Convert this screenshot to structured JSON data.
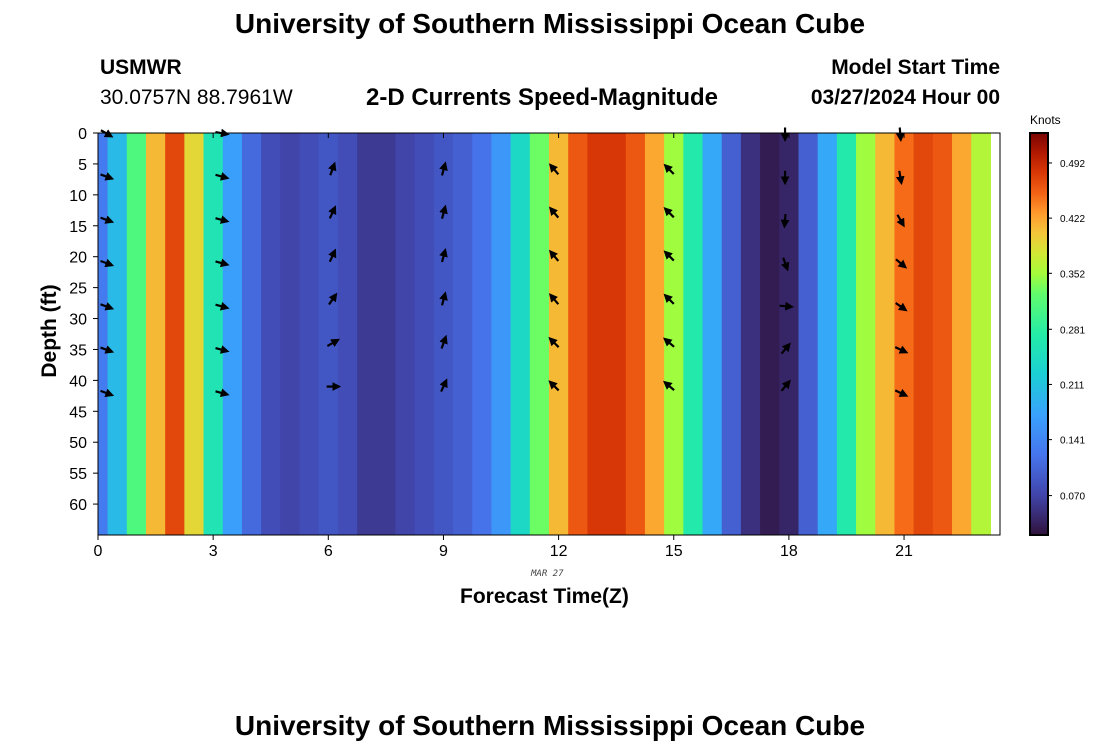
{
  "page": {
    "title_top": "University of Southern Mississippi Ocean Cube",
    "title_bottom": "University of Southern Mississippi Ocean Cube",
    "station_id": "USMWR",
    "station_coords": "30.0757N  88.7961W",
    "plot_title": "2-D Currents Speed-Magnitude",
    "model_label": "Model Start Time",
    "model_time": "03/27/2024 Hour 00",
    "date_note": "MAR 27"
  },
  "chart_data": {
    "type": "heatmap",
    "title": "2-D Currents Speed-Magnitude",
    "xlabel": "Forecast Time(Z)",
    "ylabel": "Depth (ft)",
    "colorbar_label": "Knots",
    "xlim": [
      0,
      23.5
    ],
    "ylim": [
      0,
      65
    ],
    "x_ticks": [
      0,
      3,
      6,
      9,
      12,
      15,
      18,
      21
    ],
    "y_ticks": [
      0,
      5,
      10,
      15,
      20,
      25,
      30,
      35,
      40,
      45,
      50,
      55,
      60
    ],
    "colorbar_ticks": [
      "0.070",
      "0.141",
      "0.211",
      "0.281",
      "0.352",
      "0.422",
      "0.492"
    ],
    "colorbar_range": [
      0.02,
      0.53
    ],
    "column_width_hours": 0.5,
    "speed_profile": [
      {
        "t": 0.0,
        "speed": 0.13
      },
      {
        "t": 0.5,
        "speed": 0.2
      },
      {
        "t": 1.0,
        "speed": 0.31
      },
      {
        "t": 1.5,
        "speed": 0.41
      },
      {
        "t": 2.0,
        "speed": 0.47
      },
      {
        "t": 2.5,
        "speed": 0.39
      },
      {
        "t": 3.0,
        "speed": 0.26
      },
      {
        "t": 3.5,
        "speed": 0.17
      },
      {
        "t": 4.0,
        "speed": 0.11
      },
      {
        "t": 4.5,
        "speed": 0.08
      },
      {
        "t": 5.0,
        "speed": 0.07
      },
      {
        "t": 5.5,
        "speed": 0.08
      },
      {
        "t": 6.0,
        "speed": 0.09
      },
      {
        "t": 6.5,
        "speed": 0.08
      },
      {
        "t": 7.0,
        "speed": 0.06
      },
      {
        "t": 7.5,
        "speed": 0.06
      },
      {
        "t": 8.0,
        "speed": 0.07
      },
      {
        "t": 8.5,
        "speed": 0.08
      },
      {
        "t": 9.0,
        "speed": 0.09
      },
      {
        "t": 9.5,
        "speed": 0.1
      },
      {
        "t": 10.0,
        "speed": 0.12
      },
      {
        "t": 10.5,
        "speed": 0.16
      },
      {
        "t": 11.0,
        "speed": 0.24
      },
      {
        "t": 11.5,
        "speed": 0.33
      },
      {
        "t": 12.0,
        "speed": 0.41
      },
      {
        "t": 12.5,
        "speed": 0.46
      },
      {
        "t": 13.0,
        "speed": 0.48
      },
      {
        "t": 13.5,
        "speed": 0.48
      },
      {
        "t": 14.0,
        "speed": 0.46
      },
      {
        "t": 14.5,
        "speed": 0.42
      },
      {
        "t": 15.0,
        "speed": 0.35
      },
      {
        "t": 15.5,
        "speed": 0.27
      },
      {
        "t": 16.0,
        "speed": 0.18
      },
      {
        "t": 16.5,
        "speed": 0.1
      },
      {
        "t": 17.0,
        "speed": 0.05
      },
      {
        "t": 17.5,
        "speed": 0.03
      },
      {
        "t": 18.0,
        "speed": 0.04
      },
      {
        "t": 18.5,
        "speed": 0.1
      },
      {
        "t": 19.0,
        "speed": 0.18
      },
      {
        "t": 19.5,
        "speed": 0.27
      },
      {
        "t": 20.0,
        "speed": 0.35
      },
      {
        "t": 20.5,
        "speed": 0.41
      },
      {
        "t": 21.0,
        "speed": 0.45
      },
      {
        "t": 21.5,
        "speed": 0.47
      },
      {
        "t": 22.0,
        "speed": 0.46
      },
      {
        "t": 22.5,
        "speed": 0.42
      },
      {
        "t": 23.0,
        "speed": 0.36
      }
    ],
    "vectors": [
      {
        "t": 0.2,
        "depth": 0,
        "dir_deg": 120
      },
      {
        "t": 0.2,
        "depth": 7,
        "dir_deg": 110
      },
      {
        "t": 0.2,
        "depth": 14,
        "dir_deg": 110
      },
      {
        "t": 0.2,
        "depth": 21,
        "dir_deg": 110
      },
      {
        "t": 0.2,
        "depth": 28,
        "dir_deg": 110
      },
      {
        "t": 0.2,
        "depth": 35,
        "dir_deg": 110
      },
      {
        "t": 0.2,
        "depth": 42,
        "dir_deg": 110
      },
      {
        "t": 3.2,
        "depth": 0,
        "dir_deg": 100
      },
      {
        "t": 3.2,
        "depth": 7,
        "dir_deg": 105
      },
      {
        "t": 3.2,
        "depth": 14,
        "dir_deg": 105
      },
      {
        "t": 3.2,
        "depth": 21,
        "dir_deg": 105
      },
      {
        "t": 3.2,
        "depth": 28,
        "dir_deg": 105
      },
      {
        "t": 3.2,
        "depth": 35,
        "dir_deg": 105
      },
      {
        "t": 3.2,
        "depth": 42,
        "dir_deg": 105
      },
      {
        "t": 6.1,
        "depth": 6,
        "dir_deg": 20
      },
      {
        "t": 6.1,
        "depth": 13,
        "dir_deg": 25
      },
      {
        "t": 6.1,
        "depth": 20,
        "dir_deg": 25
      },
      {
        "t": 6.1,
        "depth": 27,
        "dir_deg": 35
      },
      {
        "t": 6.1,
        "depth": 34,
        "dir_deg": 60
      },
      {
        "t": 6.1,
        "depth": 41,
        "dir_deg": 90
      },
      {
        "t": 9.0,
        "depth": 6,
        "dir_deg": 15
      },
      {
        "t": 9.0,
        "depth": 13,
        "dir_deg": 15
      },
      {
        "t": 9.0,
        "depth": 20,
        "dir_deg": 15
      },
      {
        "t": 9.0,
        "depth": 27,
        "dir_deg": 15
      },
      {
        "t": 9.0,
        "depth": 34,
        "dir_deg": 20
      },
      {
        "t": 9.0,
        "depth": 41,
        "dir_deg": 25
      },
      {
        "t": 11.9,
        "depth": 6,
        "dir_deg": 320
      },
      {
        "t": 11.9,
        "depth": 13,
        "dir_deg": 320
      },
      {
        "t": 11.9,
        "depth": 20,
        "dir_deg": 320
      },
      {
        "t": 11.9,
        "depth": 27,
        "dir_deg": 320
      },
      {
        "t": 11.9,
        "depth": 34,
        "dir_deg": 315
      },
      {
        "t": 11.9,
        "depth": 41,
        "dir_deg": 315
      },
      {
        "t": 14.9,
        "depth": 6,
        "dir_deg": 315
      },
      {
        "t": 14.9,
        "depth": 13,
        "dir_deg": 315
      },
      {
        "t": 14.9,
        "depth": 20,
        "dir_deg": 315
      },
      {
        "t": 14.9,
        "depth": 27,
        "dir_deg": 315
      },
      {
        "t": 14.9,
        "depth": 34,
        "dir_deg": 310
      },
      {
        "t": 14.9,
        "depth": 41,
        "dir_deg": 310
      },
      {
        "t": 17.9,
        "depth": 0,
        "dir_deg": 180
      },
      {
        "t": 17.9,
        "depth": 7,
        "dir_deg": 180
      },
      {
        "t": 17.9,
        "depth": 14,
        "dir_deg": 185
      },
      {
        "t": 17.9,
        "depth": 21,
        "dir_deg": 160
      },
      {
        "t": 17.9,
        "depth": 28,
        "dir_deg": 95
      },
      {
        "t": 17.9,
        "depth": 35,
        "dir_deg": 40
      },
      {
        "t": 17.9,
        "depth": 41,
        "dir_deg": 40
      },
      {
        "t": 20.9,
        "depth": 0,
        "dir_deg": 175
      },
      {
        "t": 20.9,
        "depth": 7,
        "dir_deg": 170
      },
      {
        "t": 20.9,
        "depth": 14,
        "dir_deg": 150
      },
      {
        "t": 20.9,
        "depth": 21,
        "dir_deg": 130
      },
      {
        "t": 20.9,
        "depth": 28,
        "dir_deg": 125
      },
      {
        "t": 20.9,
        "depth": 35,
        "dir_deg": 115
      },
      {
        "t": 20.9,
        "depth": 42,
        "dir_deg": 115
      }
    ]
  }
}
